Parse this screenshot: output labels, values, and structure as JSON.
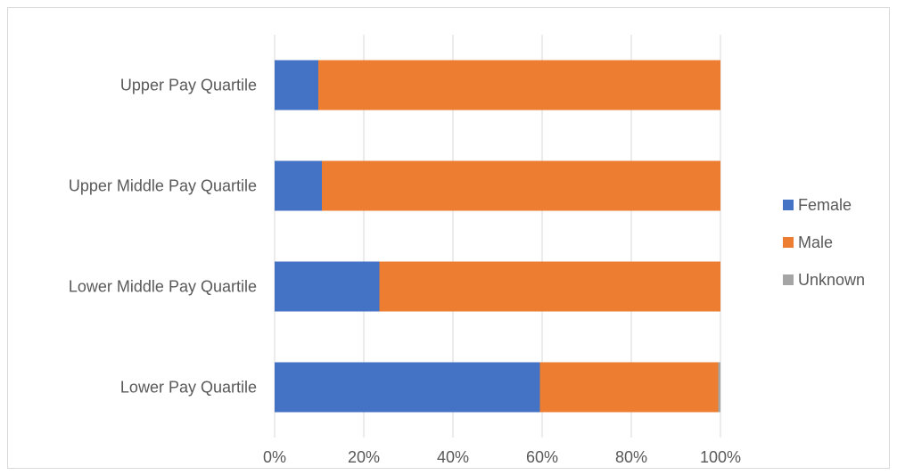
{
  "chart_data": {
    "type": "bar",
    "orientation": "horizontal",
    "stacked": "percent",
    "categories": [
      "Lower Pay Quartile",
      "Lower Middle Pay Quartile",
      "Upper Middle Pay Quartile",
      "Upper Pay Quartile"
    ],
    "series": [
      {
        "name": "Female",
        "color": "#4472c4",
        "values": [
          59.5,
          23.5,
          10.6,
          9.8
        ]
      },
      {
        "name": "Male",
        "color": "#ed7d31",
        "values": [
          40.0,
          76.5,
          89.4,
          90.2
        ]
      },
      {
        "name": "Unknown",
        "color": "#a5a5a5",
        "values": [
          0.5,
          0,
          0,
          0
        ]
      }
    ],
    "x_ticks": [
      "0%",
      "20%",
      "40%",
      "60%",
      "80%",
      "100%"
    ],
    "xlim": [
      0,
      100
    ],
    "grid": true,
    "legend_position": "right",
    "title": "",
    "xlabel": "",
    "ylabel": ""
  }
}
